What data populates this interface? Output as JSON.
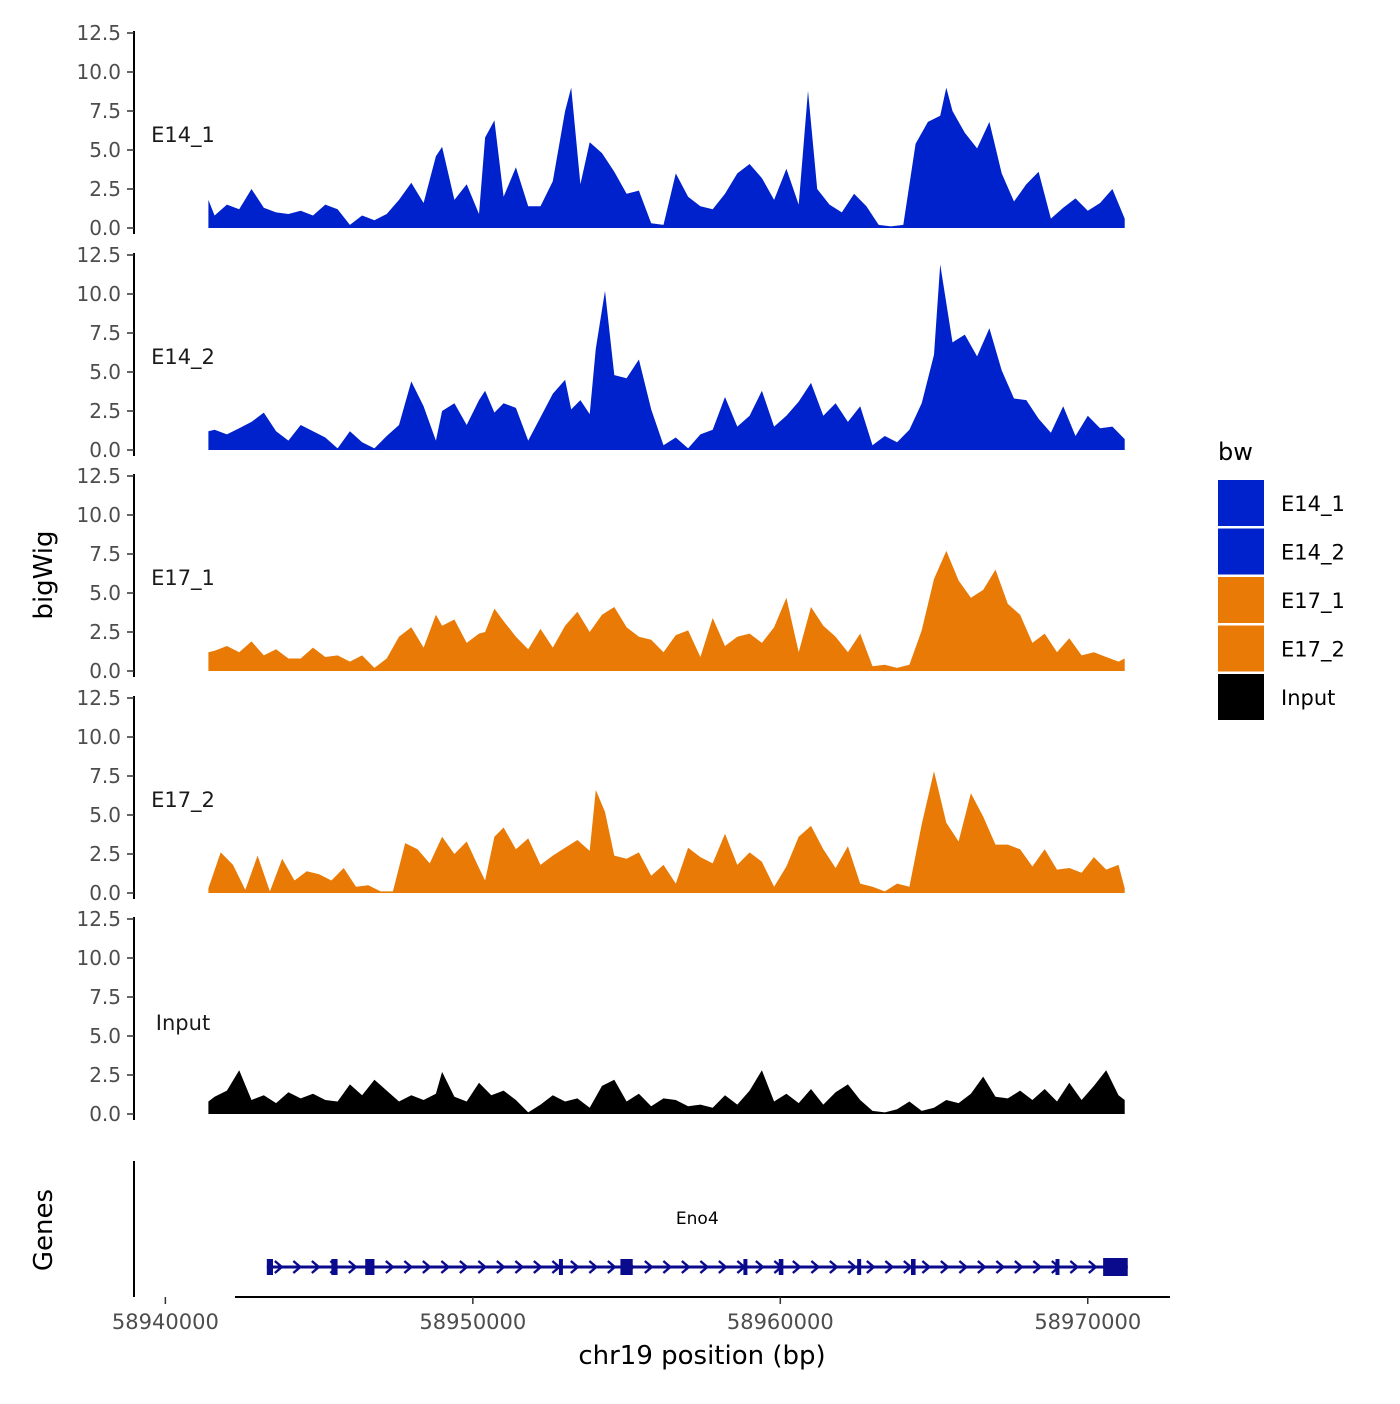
{
  "chart_data": {
    "type": "area",
    "title": "",
    "ylabel": "bigWig",
    "xlabel": "chr19 position (bp)",
    "x_range": [
      58939500,
      58973000
    ],
    "x_ticks": [
      58940000,
      58950000,
      58960000,
      58970000
    ],
    "x_tick_labels": [
      "58940000",
      "58950000",
      "58960000",
      "58970000"
    ],
    "ylim": [
      0,
      12.5
    ],
    "y_ticks": [
      0,
      2.5,
      5,
      7.5,
      10,
      12.5
    ],
    "y_tick_labels": [
      "0.0",
      "2.5",
      "5.0",
      "7.5",
      "10.0",
      "12.5"
    ],
    "legend": {
      "title": "bw",
      "position": "right",
      "entries": [
        {
          "label": "E14_1",
          "color": "#0022CC"
        },
        {
          "label": "E14_2",
          "color": "#0022CC"
        },
        {
          "label": "E17_1",
          "color": "#E87A05"
        },
        {
          "label": "E17_2",
          "color": "#E87A05"
        },
        {
          "label": "Input",
          "color": "#000000"
        }
      ]
    },
    "series": [
      {
        "name": "E14_1",
        "color": "#0022CC",
        "x": [
          58941400,
          58941600,
          58942000,
          58942400,
          58942800,
          58943200,
          58943600,
          58944000,
          58944400,
          58944800,
          58945200,
          58945600,
          58946000,
          58946400,
          58946800,
          58947200,
          58947600,
          58948000,
          58948400,
          58948800,
          58949000,
          58949400,
          58949800,
          58950200,
          58950400,
          58950700,
          58951000,
          58951400,
          58951800,
          58952200,
          58952600,
          58953000,
          58953200,
          58953500,
          58953800,
          58954200,
          58954600,
          58955000,
          58955400,
          58955800,
          58956200,
          58956600,
          58957000,
          58957400,
          58957800,
          58958200,
          58958600,
          58959000,
          58959400,
          58959800,
          58960200,
          58960600,
          58960900,
          58961200,
          58961600,
          58962000,
          58962400,
          58962800,
          58963200,
          58963600,
          58964000,
          58964400,
          58964800,
          58965200,
          58965400,
          58965600,
          58966000,
          58966400,
          58966800,
          58967200,
          58967600,
          58968000,
          58968400,
          58968800,
          58969200,
          58969600,
          58970000,
          58970400,
          58970800,
          58971200
        ],
        "values": [
          1.8,
          0.8,
          1.5,
          1.2,
          2.5,
          1.3,
          1.0,
          0.9,
          1.1,
          0.8,
          1.5,
          1.2,
          0.2,
          0.8,
          0.5,
          0.9,
          1.8,
          2.9,
          1.6,
          4.6,
          5.2,
          1.8,
          2.8,
          0.9,
          5.8,
          6.9,
          2.0,
          3.9,
          1.4,
          1.4,
          3.0,
          7.5,
          9.0,
          2.8,
          5.5,
          4.8,
          3.6,
          2.2,
          2.4,
          0.3,
          0.2,
          3.5,
          2.0,
          1.4,
          1.2,
          2.2,
          3.5,
          4.1,
          3.2,
          1.8,
          3.8,
          1.5,
          8.8,
          2.5,
          1.5,
          1.0,
          2.2,
          1.4,
          0.2,
          0.1,
          0.2,
          5.4,
          6.8,
          7.2,
          9.0,
          7.5,
          6.1,
          5.1,
          6.8,
          3.5,
          1.7,
          2.8,
          3.6,
          0.6,
          1.3,
          1.9,
          1.1,
          1.6,
          2.5,
          0.6
        ]
      },
      {
        "name": "E14_2",
        "color": "#0022CC",
        "x": [
          58941400,
          58941600,
          58942000,
          58942400,
          58942800,
          58943200,
          58943600,
          58944000,
          58944400,
          58944800,
          58945200,
          58945600,
          58946000,
          58946400,
          58946800,
          58947200,
          58947600,
          58948000,
          58948400,
          58948800,
          58949000,
          58949400,
          58949800,
          58950200,
          58950400,
          58950700,
          58951000,
          58951400,
          58951800,
          58952200,
          58952600,
          58953000,
          58953200,
          58953500,
          58953800,
          58954000,
          58954300,
          58954600,
          58955000,
          58955400,
          58955800,
          58956200,
          58956600,
          58957000,
          58957400,
          58957800,
          58958200,
          58958600,
          58959000,
          58959400,
          58959800,
          58960200,
          58960600,
          58961000,
          58961400,
          58961800,
          58962200,
          58962600,
          58963000,
          58963400,
          58963800,
          58964200,
          58964600,
          58965000,
          58965200,
          58965600,
          58966000,
          58966400,
          58966800,
          58967200,
          58967600,
          58968000,
          58968400,
          58968800,
          58969200,
          58969600,
          58970000,
          58970400,
          58970800,
          58971200
        ],
        "values": [
          1.2,
          1.3,
          1.0,
          1.4,
          1.8,
          2.4,
          1.2,
          0.6,
          1.6,
          1.2,
          0.8,
          0.1,
          1.2,
          0.5,
          0.1,
          0.9,
          1.6,
          4.4,
          2.8,
          0.6,
          2.5,
          3.0,
          1.6,
          3.2,
          3.8,
          2.4,
          3.0,
          2.7,
          0.6,
          2.1,
          3.6,
          4.5,
          2.6,
          3.2,
          2.3,
          6.5,
          10.2,
          4.8,
          4.6,
          5.8,
          2.6,
          0.3,
          0.8,
          0.1,
          1.0,
          1.3,
          3.4,
          1.5,
          2.2,
          3.8,
          1.5,
          2.2,
          3.1,
          4.3,
          2.2,
          3.0,
          1.8,
          2.8,
          0.3,
          0.9,
          0.5,
          1.3,
          3.0,
          6.1,
          11.9,
          6.9,
          7.4,
          6.0,
          7.8,
          5.1,
          3.3,
          3.2,
          2.0,
          1.1,
          2.8,
          0.9,
          2.2,
          1.4,
          1.5,
          0.7
        ]
      },
      {
        "name": "E17_1",
        "color": "#E87A05",
        "x": [
          58941400,
          58941600,
          58942000,
          58942400,
          58942800,
          58943200,
          58943600,
          58944000,
          58944400,
          58944800,
          58945200,
          58945600,
          58946000,
          58946400,
          58946800,
          58947200,
          58947600,
          58948000,
          58948400,
          58948800,
          58949000,
          58949400,
          58949800,
          58950200,
          58950400,
          58950700,
          58951000,
          58951400,
          58951800,
          58952200,
          58952600,
          58953000,
          58953400,
          58953800,
          58954200,
          58954600,
          58955000,
          58955400,
          58955800,
          58956200,
          58956600,
          58957000,
          58957400,
          58957800,
          58958200,
          58958600,
          58959000,
          58959400,
          58959800,
          58960200,
          58960600,
          58961000,
          58961400,
          58961800,
          58962200,
          58962600,
          58963000,
          58963400,
          58963800,
          58964200,
          58964600,
          58965000,
          58965400,
          58965800,
          58966200,
          58966600,
          58967000,
          58967400,
          58967800,
          58968200,
          58968600,
          58969000,
          58969400,
          58969800,
          58970200,
          58970600,
          58971000,
          58971200
        ],
        "values": [
          1.2,
          1.3,
          1.6,
          1.2,
          1.9,
          1.0,
          1.4,
          0.8,
          0.8,
          1.5,
          0.9,
          1.0,
          0.6,
          1.0,
          0.2,
          0.8,
          2.2,
          2.8,
          1.5,
          3.6,
          2.9,
          3.3,
          1.8,
          2.4,
          2.5,
          4.0,
          3.2,
          2.2,
          1.4,
          2.7,
          1.5,
          2.9,
          3.8,
          2.5,
          3.6,
          4.1,
          2.8,
          2.2,
          2.0,
          1.2,
          2.3,
          2.6,
          0.9,
          3.4,
          1.6,
          2.2,
          2.4,
          1.8,
          2.8,
          4.7,
          1.2,
          4.1,
          2.9,
          2.2,
          1.2,
          2.4,
          0.3,
          0.4,
          0.2,
          0.4,
          2.6,
          5.9,
          7.7,
          5.8,
          4.7,
          5.2,
          6.5,
          4.3,
          3.6,
          1.8,
          2.4,
          1.2,
          2.1,
          1.0,
          1.2,
          0.9,
          0.6,
          0.8
        ]
      },
      {
        "name": "E17_2",
        "color": "#E87A05",
        "x": [
          58941400,
          58941800,
          58942200,
          58942600,
          58943000,
          58943400,
          58943800,
          58944200,
          58944600,
          58945000,
          58945400,
          58945800,
          58946200,
          58946600,
          58947000,
          58947400,
          58947800,
          58948200,
          58948600,
          58949000,
          58949400,
          58949800,
          58950200,
          58950400,
          58950700,
          58951000,
          58951400,
          58951800,
          58952200,
          58952600,
          58953000,
          58953400,
          58953800,
          58954000,
          58954300,
          58954600,
          58955000,
          58955400,
          58955800,
          58956200,
          58956600,
          58957000,
          58957400,
          58957800,
          58958200,
          58958600,
          58959000,
          58959400,
          58959800,
          58960200,
          58960600,
          58961000,
          58961400,
          58961800,
          58962200,
          58962600,
          58963000,
          58963400,
          58963800,
          58964200,
          58964600,
          58965000,
          58965400,
          58965800,
          58966200,
          58966600,
          58967000,
          58967400,
          58967800,
          58968200,
          58968600,
          58969000,
          58969400,
          58969800,
          58970200,
          58970600,
          58971000,
          58971200
        ],
        "values": [
          0.3,
          2.6,
          1.8,
          0.2,
          2.4,
          0.1,
          2.2,
          0.8,
          1.4,
          1.2,
          0.8,
          1.6,
          0.4,
          0.5,
          0.1,
          0.1,
          3.2,
          2.8,
          1.9,
          3.6,
          2.5,
          3.3,
          1.6,
          0.8,
          3.6,
          4.2,
          2.8,
          3.5,
          1.8,
          2.4,
          2.9,
          3.4,
          2.7,
          6.6,
          5.2,
          2.4,
          2.2,
          2.6,
          1.1,
          1.8,
          0.6,
          2.9,
          2.3,
          1.9,
          3.8,
          1.8,
          2.6,
          2.0,
          0.4,
          1.7,
          3.6,
          4.3,
          2.8,
          1.6,
          3.0,
          0.6,
          0.4,
          0.1,
          0.6,
          0.4,
          4.4,
          7.8,
          4.5,
          3.3,
          6.4,
          4.9,
          3.1,
          3.1,
          2.8,
          1.7,
          2.8,
          1.5,
          1.6,
          1.3,
          2.3,
          1.5,
          1.8,
          0.3
        ]
      },
      {
        "name": "Input",
        "color": "#000000",
        "x": [
          58941400,
          58941600,
          58942000,
          58942400,
          58942800,
          58943200,
          58943600,
          58944000,
          58944400,
          58944800,
          58945200,
          58945600,
          58946000,
          58946400,
          58946800,
          58947200,
          58947600,
          58948000,
          58948400,
          58948800,
          58949000,
          58949400,
          58949800,
          58950200,
          58950600,
          58951000,
          58951400,
          58951800,
          58952200,
          58952600,
          58953000,
          58953400,
          58953800,
          58954200,
          58954600,
          58955000,
          58955400,
          58955800,
          58956200,
          58956600,
          58957000,
          58957400,
          58957800,
          58958200,
          58958600,
          58959000,
          58959400,
          58959800,
          58960200,
          58960600,
          58961000,
          58961400,
          58961800,
          58962200,
          58962600,
          58963000,
          58963400,
          58963800,
          58964200,
          58964600,
          58965000,
          58965400,
          58965800,
          58966200,
          58966600,
          58967000,
          58967400,
          58967800,
          58968200,
          58968600,
          58969000,
          58969400,
          58969800,
          58970200,
          58970600,
          58971000,
          58971200
        ],
        "values": [
          0.8,
          1.1,
          1.5,
          2.8,
          0.9,
          1.2,
          0.7,
          1.4,
          1.0,
          1.3,
          0.9,
          0.8,
          1.9,
          1.2,
          2.2,
          1.5,
          0.8,
          1.2,
          0.9,
          1.3,
          2.7,
          1.1,
          0.8,
          2.0,
          1.2,
          1.5,
          0.9,
          0.1,
          0.6,
          1.2,
          0.8,
          1.0,
          0.4,
          1.8,
          2.2,
          0.8,
          1.3,
          0.5,
          1.0,
          0.9,
          0.5,
          0.6,
          0.4,
          1.2,
          0.6,
          1.5,
          2.8,
          0.8,
          1.3,
          0.7,
          1.6,
          0.6,
          1.4,
          1.9,
          0.9,
          0.2,
          0.1,
          0.3,
          0.8,
          0.2,
          0.4,
          0.9,
          0.7,
          1.3,
          2.4,
          1.1,
          1.0,
          1.5,
          0.9,
          1.6,
          0.8,
          2.0,
          0.9,
          1.8,
          2.8,
          1.2,
          0.9
        ]
      }
    ],
    "genes_track": {
      "label": "Genes",
      "gene_name": "Eno4",
      "strand": "+",
      "start": 58943300,
      "end": 58971300,
      "color": "#0A0A8C",
      "exons": [
        {
          "start": 58943300,
          "end": 58943500
        },
        {
          "start": 58945400,
          "end": 58945600
        },
        {
          "start": 58946500,
          "end": 58946800
        },
        {
          "start": 58952800,
          "end": 58952900
        },
        {
          "start": 58954800,
          "end": 58955200
        },
        {
          "start": 58958800,
          "end": 58958900
        },
        {
          "start": 58959950,
          "end": 58960100
        },
        {
          "start": 58962500,
          "end": 58962550
        },
        {
          "start": 58964250,
          "end": 58964400
        },
        {
          "start": 58968950,
          "end": 58969050
        },
        {
          "start": 58970500,
          "end": 58971300
        }
      ]
    }
  }
}
